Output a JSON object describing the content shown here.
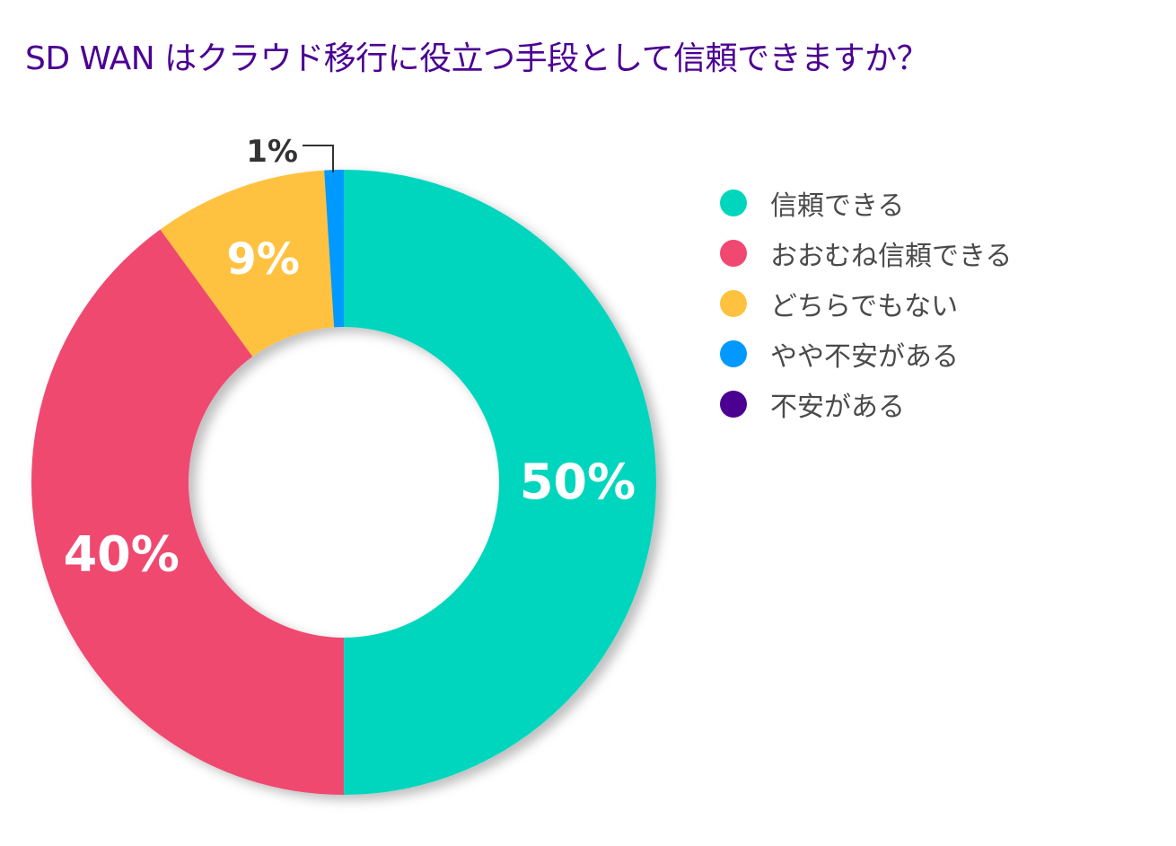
{
  "chart_data": {
    "type": "pie",
    "variant": "donut",
    "title": "SD WAN はクラウド移行に役立つ手段として信頼できますか？",
    "categories": [
      "信頼できる",
      "おおむね信頼できる",
      "どちらでもない",
      "やや不安がある",
      "不安がある"
    ],
    "values": [
      50,
      40,
      9,
      1,
      0
    ],
    "data_labels": [
      "50%",
      "40%",
      "9%",
      "1%",
      ""
    ],
    "colors": [
      "#00D6BE",
      "#F04870",
      "#FFC23F",
      "#0099FF",
      "#4B0092"
    ],
    "legend_placement": "right",
    "start": "top",
    "direction": "clockwise"
  }
}
